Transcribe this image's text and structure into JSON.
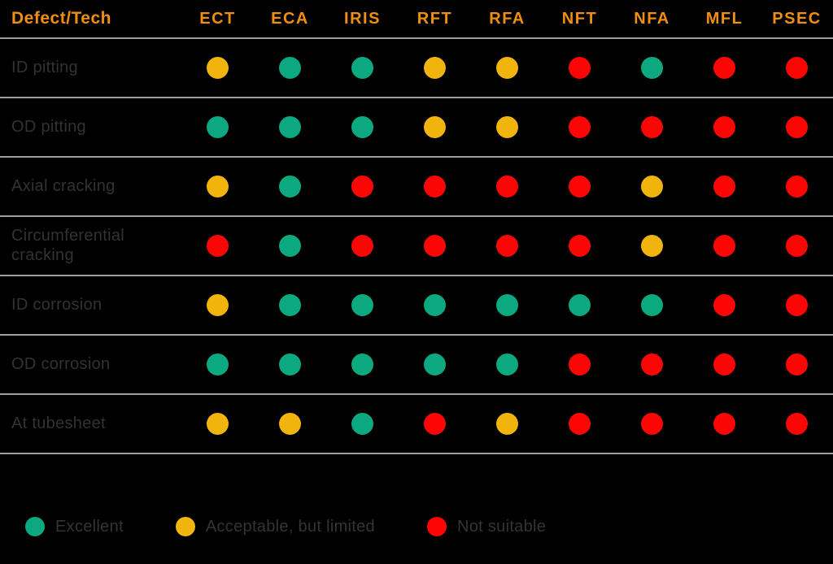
{
  "chart_data": {
    "type": "heatmap",
    "title": "",
    "corner_label": "Defect/Tech",
    "columns": [
      "ECT",
      "ECA",
      "IRIS",
      "RFT",
      "RFA",
      "NFT",
      "NFA",
      "MFL",
      "PSEC"
    ],
    "rows": [
      {
        "defect": "ID pitting",
        "ratings": [
          "acceptable",
          "excellent",
          "excellent",
          "acceptable",
          "acceptable",
          "not_suitable",
          "excellent",
          "not_suitable",
          "not_suitable"
        ]
      },
      {
        "defect": "OD pitting",
        "ratings": [
          "excellent",
          "excellent",
          "excellent",
          "acceptable",
          "acceptable",
          "not_suitable",
          "not_suitable",
          "not_suitable",
          "not_suitable"
        ]
      },
      {
        "defect": "Axial cracking",
        "ratings": [
          "acceptable",
          "excellent",
          "not_suitable",
          "not_suitable",
          "not_suitable",
          "not_suitable",
          "acceptable",
          "not_suitable",
          "not_suitable"
        ]
      },
      {
        "defect": "Circumferential cracking",
        "ratings": [
          "not_suitable",
          "excellent",
          "not_suitable",
          "not_suitable",
          "not_suitable",
          "not_suitable",
          "acceptable",
          "not_suitable",
          "not_suitable"
        ]
      },
      {
        "defect": "ID corrosion",
        "ratings": [
          "acceptable",
          "excellent",
          "excellent",
          "excellent",
          "excellent",
          "excellent",
          "excellent",
          "not_suitable",
          "not_suitable"
        ]
      },
      {
        "defect": "OD corrosion",
        "ratings": [
          "excellent",
          "excellent",
          "excellent",
          "excellent",
          "excellent",
          "not_suitable",
          "not_suitable",
          "not_suitable",
          "not_suitable"
        ]
      },
      {
        "defect": "At tubesheet",
        "ratings": [
          "acceptable",
          "acceptable",
          "excellent",
          "not_suitable",
          "acceptable",
          "not_suitable",
          "not_suitable",
          "not_suitable",
          "not_suitable"
        ]
      }
    ],
    "legend": [
      {
        "rating": "excellent",
        "label": "Excellent"
      },
      {
        "rating": "acceptable",
        "label": "Acceptable, but limited"
      },
      {
        "rating": "not_suitable",
        "label": "Not suitable"
      }
    ],
    "rating_colors": {
      "excellent": "#0ca981",
      "acceptable": "#f0b40c",
      "not_suitable": "#fb0505"
    },
    "layout": {
      "grid": "off",
      "legend_position": "bottom-left",
      "background": "#000000",
      "header_text_color": "#ef8e11",
      "row_label_color": "#32322e",
      "divider_color": "#a0a0a0"
    }
  }
}
